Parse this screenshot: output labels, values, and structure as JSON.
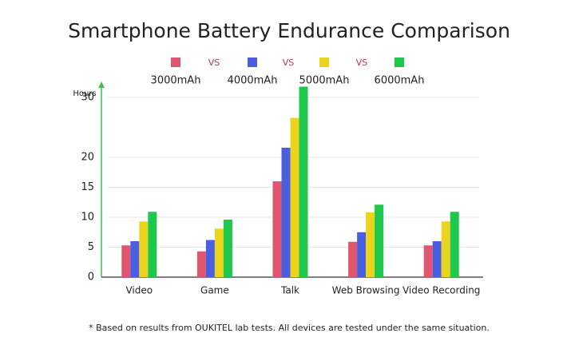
{
  "chart_data": {
    "type": "bar",
    "title": "Smartphone Battery Endurance Comparison",
    "y_label": "Hours",
    "vs_labels": [
      "VS",
      "VS",
      "VS"
    ],
    "footnote": "* Based on results from OUKITEL lab tests. All devices are tested under the same situation.",
    "categories": [
      "Video",
      "Game",
      "Talk",
      "Web Browsing",
      "Video Recording"
    ],
    "series": [
      {
        "name": "3000mAh",
        "color": "#e0566e",
        "values": [
          5.3,
          4.3,
          16,
          5.9,
          5.3
        ]
      },
      {
        "name": "4000mAh",
        "color": "#4a5ee0",
        "values": [
          6,
          6.2,
          21.6,
          7.5,
          6
        ]
      },
      {
        "name": "5000mAh",
        "color": "#ead41e",
        "values": [
          9.3,
          8.1,
          26.6,
          10.8,
          9.3
        ]
      },
      {
        "name": "6000mAh",
        "color": "#1ec84a",
        "values": [
          10.9,
          9.6,
          31.8,
          12.1,
          10.9
        ]
      }
    ],
    "ylim": [
      0,
      32
    ],
    "yticks": [
      0,
      5,
      10,
      15,
      20,
      30
    ],
    "grid": true
  }
}
